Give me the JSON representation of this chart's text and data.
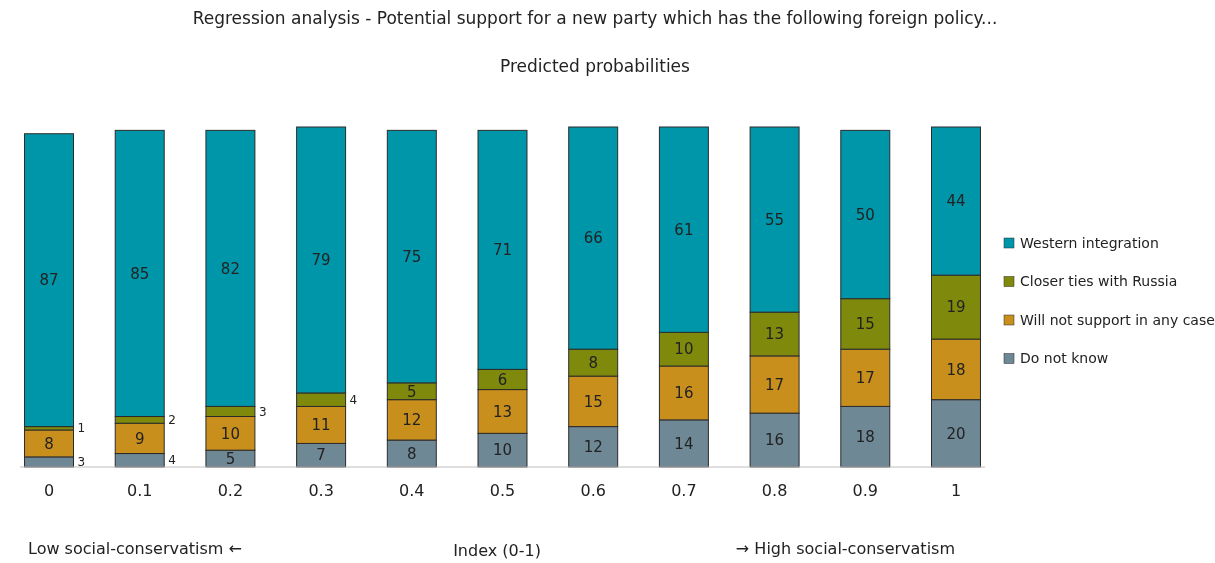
{
  "chart_data": {
    "type": "bar",
    "stacked": true,
    "title": "Regression analysis - Potential support for a new party which has the following foreign policy...",
    "subtitle": "Predicted probabilities",
    "xlabel": "Index  (0-1)",
    "annotations": [
      "Low social-conservatism  ←",
      "→  High social-conservatism"
    ],
    "categories": [
      "0",
      "0.1",
      "0.2",
      "0.3",
      "0.4",
      "0.5",
      "0.6",
      "0.7",
      "0.8",
      "0.9",
      "1"
    ],
    "series": [
      {
        "name": "Do not know",
        "color": "#6e8896",
        "values": [
          3,
          4,
          5,
          7,
          8,
          10,
          12,
          14,
          16,
          18,
          20
        ]
      },
      {
        "name": "Will not support in any case",
        "color": "#c98f1d",
        "values": [
          8,
          9,
          10,
          11,
          12,
          13,
          15,
          16,
          17,
          17,
          18
        ]
      },
      {
        "name": "Closer ties with Russia",
        "color": "#7f8a0c",
        "values": [
          1,
          2,
          3,
          4,
          5,
          6,
          8,
          10,
          13,
          15,
          19
        ]
      },
      {
        "name": "Western integration",
        "color": "#0096aa",
        "values": [
          87,
          85,
          82,
          79,
          75,
          71,
          66,
          61,
          55,
          50,
          44
        ]
      }
    ],
    "ylim": [
      0,
      101
    ],
    "tick_labels": "x",
    "data_labels": true,
    "legend": "right"
  }
}
